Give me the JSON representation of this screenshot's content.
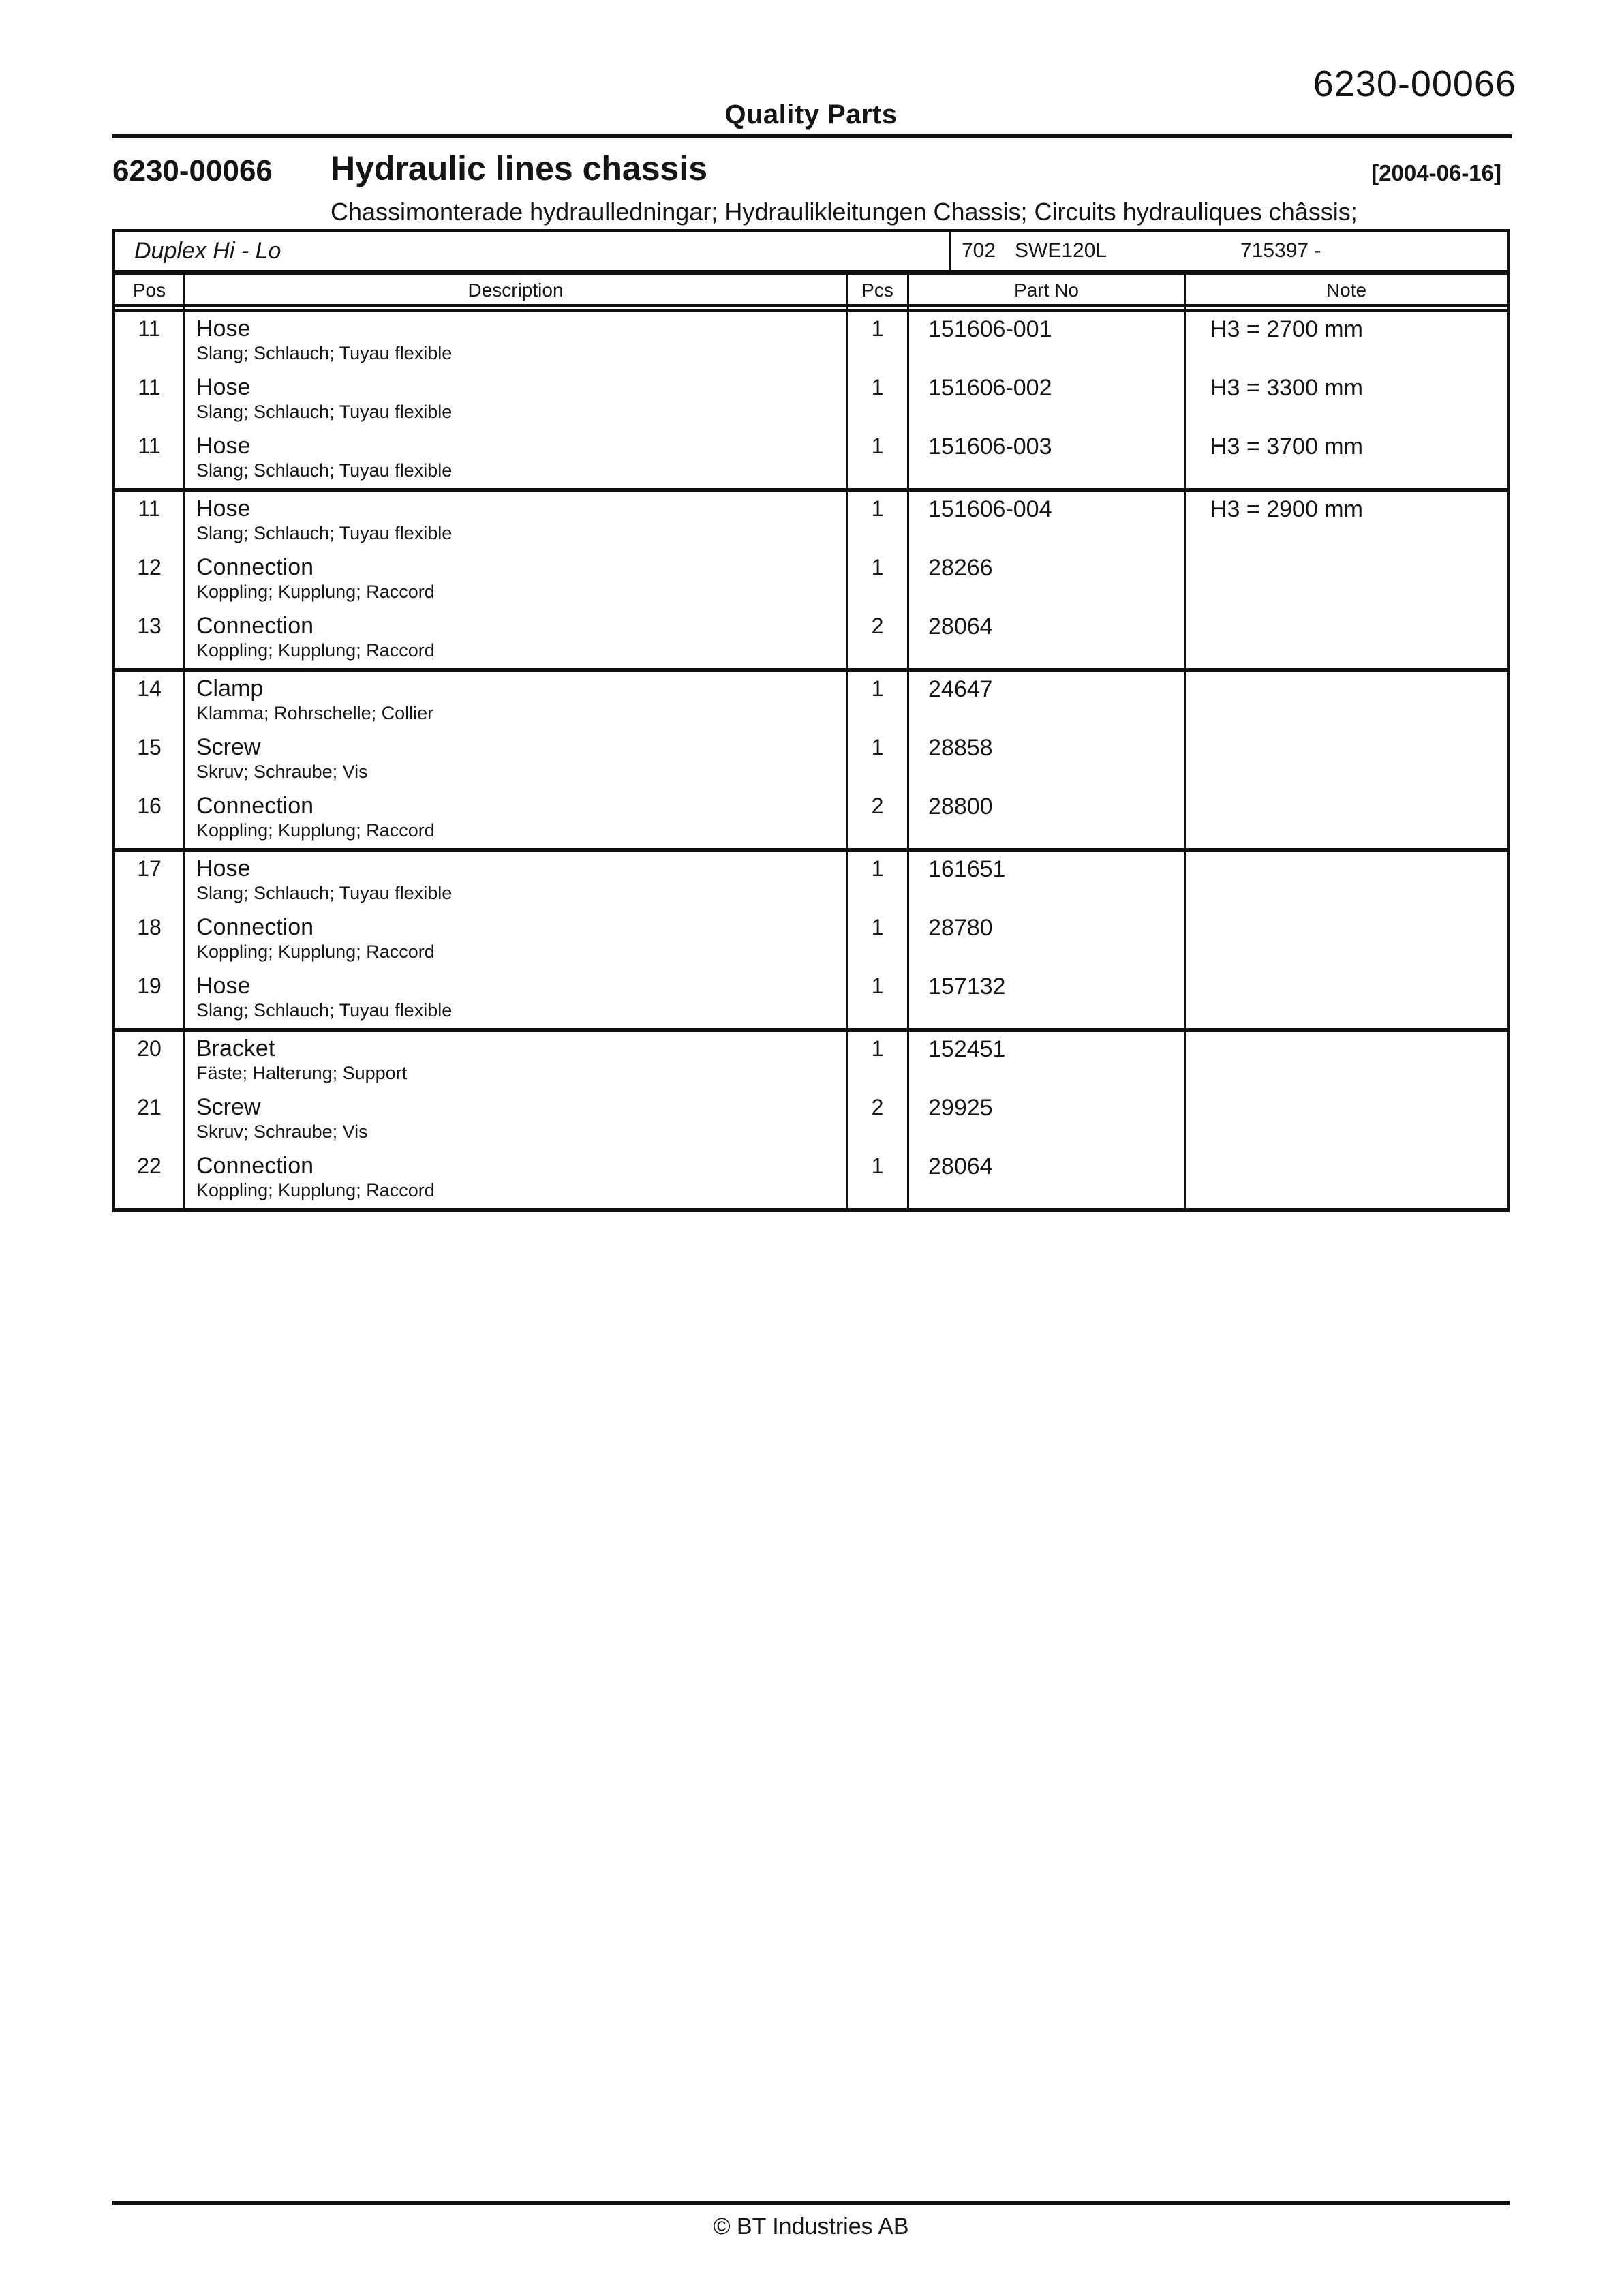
{
  "header": {
    "center_label": "Quality Parts",
    "doc_number": "6230-00066"
  },
  "title": {
    "code": "6230-00066",
    "name": "Hydraulic lines chassis",
    "date": "[2004-06-16]",
    "subtitle": "Chassimonterade hydraulledningar; Hydraulikleitungen Chassis; Circuits hydrauliques châssis;"
  },
  "table": {
    "model": "Duplex Hi - Lo",
    "type_code": "702",
    "model_code": "SWE120L",
    "serial_range": "715397 -",
    "columns": [
      "Pos",
      "Description",
      "Pcs",
      "Part No",
      "Note"
    ],
    "groups": [
      {
        "rows": [
          {
            "pos": "11",
            "desc": "Hose",
            "desc_i18n": "Slang; Schlauch; Tuyau flexible",
            "pcs": "1",
            "part_no": "151606-001",
            "note": "H3 = 2700 mm"
          },
          {
            "pos": "11",
            "desc": "Hose",
            "desc_i18n": "Slang; Schlauch; Tuyau flexible",
            "pcs": "1",
            "part_no": "151606-002",
            "note": "H3 = 3300 mm"
          },
          {
            "pos": "11",
            "desc": "Hose",
            "desc_i18n": "Slang; Schlauch; Tuyau flexible",
            "pcs": "1",
            "part_no": "151606-003",
            "note": "H3 = 3700 mm"
          }
        ]
      },
      {
        "rows": [
          {
            "pos": "11",
            "desc": "Hose",
            "desc_i18n": "Slang; Schlauch; Tuyau flexible",
            "pcs": "1",
            "part_no": "151606-004",
            "note": "H3 = 2900 mm"
          },
          {
            "pos": "12",
            "desc": "Connection",
            "desc_i18n": "Koppling; Kupplung; Raccord",
            "pcs": "1",
            "part_no": "28266",
            "note": ""
          },
          {
            "pos": "13",
            "desc": "Connection",
            "desc_i18n": "Koppling; Kupplung; Raccord",
            "pcs": "2",
            "part_no": "28064",
            "note": ""
          }
        ]
      },
      {
        "rows": [
          {
            "pos": "14",
            "desc": "Clamp",
            "desc_i18n": "Klamma; Rohrschelle; Collier",
            "pcs": "1",
            "part_no": "24647",
            "note": ""
          },
          {
            "pos": "15",
            "desc": "Screw",
            "desc_i18n": "Skruv; Schraube; Vis",
            "pcs": "1",
            "part_no": "28858",
            "note": ""
          },
          {
            "pos": "16",
            "desc": "Connection",
            "desc_i18n": "Koppling; Kupplung; Raccord",
            "pcs": "2",
            "part_no": "28800",
            "note": ""
          }
        ]
      },
      {
        "rows": [
          {
            "pos": "17",
            "desc": "Hose",
            "desc_i18n": "Slang; Schlauch; Tuyau flexible",
            "pcs": "1",
            "part_no": "161651",
            "note": ""
          },
          {
            "pos": "18",
            "desc": "Connection",
            "desc_i18n": "Koppling; Kupplung; Raccord",
            "pcs": "1",
            "part_no": "28780",
            "note": ""
          },
          {
            "pos": "19",
            "desc": "Hose",
            "desc_i18n": "Slang; Schlauch; Tuyau flexible",
            "pcs": "1",
            "part_no": "157132",
            "note": ""
          }
        ]
      },
      {
        "rows": [
          {
            "pos": "20",
            "desc": "Bracket",
            "desc_i18n": "Fäste; Halterung; Support",
            "pcs": "1",
            "part_no": "152451",
            "note": ""
          },
          {
            "pos": "21",
            "desc": "Screw",
            "desc_i18n": "Skruv; Schraube; Vis",
            "pcs": "2",
            "part_no": "29925",
            "note": ""
          },
          {
            "pos": "22",
            "desc": "Connection",
            "desc_i18n": "Koppling; Kupplung; Raccord",
            "pcs": "1",
            "part_no": "28064",
            "note": ""
          }
        ]
      }
    ]
  },
  "footer": {
    "copyright": "© BT Industries AB"
  }
}
